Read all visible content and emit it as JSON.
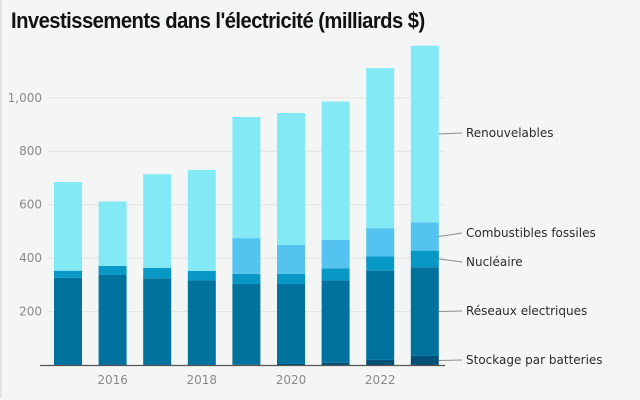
{
  "chart_data": {
    "type": "bar",
    "stacked": true,
    "title": "Investissements dans l'électricité (milliards $)",
    "xlabel": "",
    "ylabel": "",
    "x": [
      2015,
      2016,
      2017,
      2018,
      2019,
      2020,
      2021,
      2022,
      2023
    ],
    "x_tick_labels": [
      "2016",
      "2018",
      "2020",
      "2022"
    ],
    "x_tick_values": [
      2016,
      2018,
      2020,
      2022
    ],
    "y_tick_labels": [
      "200",
      "400",
      "600",
      "800",
      "1,000"
    ],
    "y_tick_values": [
      200,
      400,
      600,
      800,
      1000
    ],
    "ylim": [
      0,
      1200
    ],
    "grid": true,
    "legend_placement": "right (labels with leader lines)",
    "series": [
      {
        "name": "Stockage par batteries",
        "color": "#005078",
        "values": [
          0,
          0,
          0,
          0,
          1,
          4,
          8,
          19,
          34
        ]
      },
      {
        "name": "Réseaux electriques",
        "color": "#00729d",
        "values": [
          326,
          337,
          325,
          316,
          302,
          299,
          308,
          334,
          332
        ]
      },
      {
        "name": "Nucléaire",
        "color": "#0798c5",
        "values": [
          27,
          34,
          39,
          36,
          38,
          38,
          46,
          53,
          62
        ]
      },
      {
        "name": "Combustibles fossiles",
        "color": "#55c3ef",
        "values": [
          0,
          0,
          0,
          0,
          134,
          108,
          106,
          106,
          106
        ]
      },
      {
        "name": "Renouvelables",
        "color": "#82e9f5",
        "values": [
          332,
          241,
          350,
          378,
          453,
          494,
          518,
          599,
          661
        ]
      }
    ]
  }
}
